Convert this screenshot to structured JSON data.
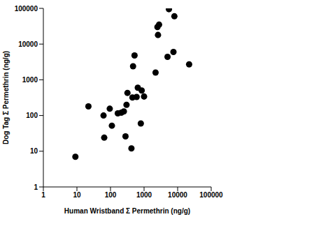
{
  "chart_data": {
    "type": "scatter",
    "x_label": "Human Wristband Σ Permethrin (ng/g)",
    "y_label": "Dog Tag Σ Permethrin (ng/g)",
    "x": [
      9,
      22,
      62,
      65,
      95,
      110,
      165,
      210,
      250,
      280,
      300,
      320,
      420,
      450,
      470,
      520,
      600,
      650,
      800,
      850,
      1000,
      2200,
      2500,
      2600,
      2800,
      5000,
      5500,
      7500,
      8000,
      22000
    ],
    "values": [
      7,
      180,
      100,
      24,
      155,
      52,
      115,
      120,
      130,
      26,
      200,
      430,
      12,
      320,
      2400,
      4800,
      330,
      600,
      60,
      500,
      340,
      1600,
      30000,
      18000,
      35000,
      4400,
      95000,
      6000,
      60000,
      2700
    ],
    "color": "#000000",
    "marker": "circle",
    "log": true,
    "grid": false,
    "xlim": [
      1,
      100000
    ],
    "ylim": [
      1,
      100000
    ],
    "xticks": [
      1,
      10,
      100,
      1000,
      10000,
      100000
    ],
    "yticks": [
      1,
      10,
      100,
      1000,
      10000,
      100000
    ]
  }
}
